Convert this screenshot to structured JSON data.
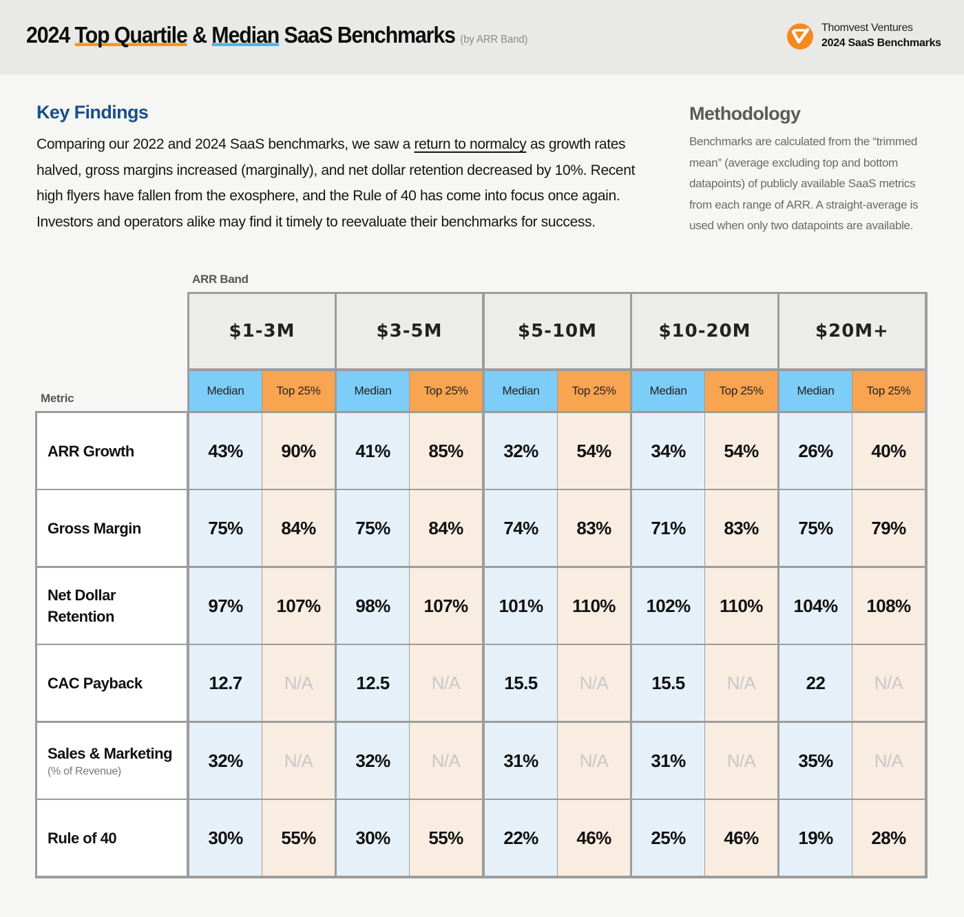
{
  "header": {
    "title_part1": "2024 ",
    "title_top_quartile": "Top Quartile",
    "title_amp": " & ",
    "title_median": "Median",
    "title_part2": " SaaS Benchmarks",
    "title_sub": "(by ARR Band)",
    "brand_name": "Thomvest Ventures",
    "brand_sub": "2024 SaaS Benchmarks",
    "brand_color": "#f58a1f"
  },
  "key_findings": {
    "title": "Key Findings",
    "body_before": "Comparing our 2022 and 2024 SaaS benchmarks, we saw a ",
    "body_underlined": "return to normalcy",
    "body_after": " as growth rates halved, gross margins increased (marginally), and net dollar retention decreased by 10%. Recent high flyers have fallen from the exosphere, and the Rule of 40 has come into focus once again. Investors and operators alike may find it timely to reevaluate their benchmarks for success."
  },
  "methodology": {
    "title": "Methodology",
    "body": "Benchmarks are calculated from the “trimmed mean” (average excluding top and bottom datapoints) of publicly available SaaS metrics from each range of ARR. A straight-average is used when only two datapoints are available."
  },
  "table": {
    "arr_band_label": "ARR Band",
    "metric_label": "Metric",
    "median_label": "Median",
    "top_label": "Top 25%",
    "colors": {
      "median_header": "#7ccdf7",
      "top_header": "#f9a450",
      "median_cell": "#e5f0f8",
      "top_cell": "#f9ece0",
      "na_text": "#c8c8c8"
    },
    "bands": [
      "$1-3M",
      "$3-5M",
      "$5-10M",
      "$10-20M",
      "$20M+"
    ],
    "rows": [
      {
        "metric": "ARR Growth",
        "note": "",
        "values": [
          "43%",
          "90%",
          "41%",
          "85%",
          "32%",
          "54%",
          "34%",
          "54%",
          "26%",
          "40%"
        ]
      },
      {
        "metric": "Gross Margin",
        "note": "",
        "values": [
          "75%",
          "84%",
          "75%",
          "84%",
          "74%",
          "83%",
          "71%",
          "83%",
          "75%",
          "79%"
        ]
      },
      {
        "metric": "Net Dollar Retention",
        "note": "",
        "values": [
          "97%",
          "107%",
          "98%",
          "107%",
          "101%",
          "110%",
          "102%",
          "110%",
          "104%",
          "108%"
        ]
      },
      {
        "metric": "CAC Payback",
        "note": "",
        "values": [
          "12.7",
          "N/A",
          "12.5",
          "N/A",
          "15.5",
          "N/A",
          "15.5",
          "N/A",
          "22",
          "N/A"
        ]
      },
      {
        "metric": "Sales & Marketing",
        "note": "(% of Revenue)",
        "values": [
          "32%",
          "N/A",
          "32%",
          "N/A",
          "31%",
          "N/A",
          "31%",
          "N/A",
          "35%",
          "N/A"
        ]
      },
      {
        "metric": "Rule of 40",
        "note": "",
        "values": [
          "30%",
          "55%",
          "30%",
          "55%",
          "22%",
          "46%",
          "25%",
          "46%",
          "19%",
          "28%"
        ]
      }
    ]
  }
}
